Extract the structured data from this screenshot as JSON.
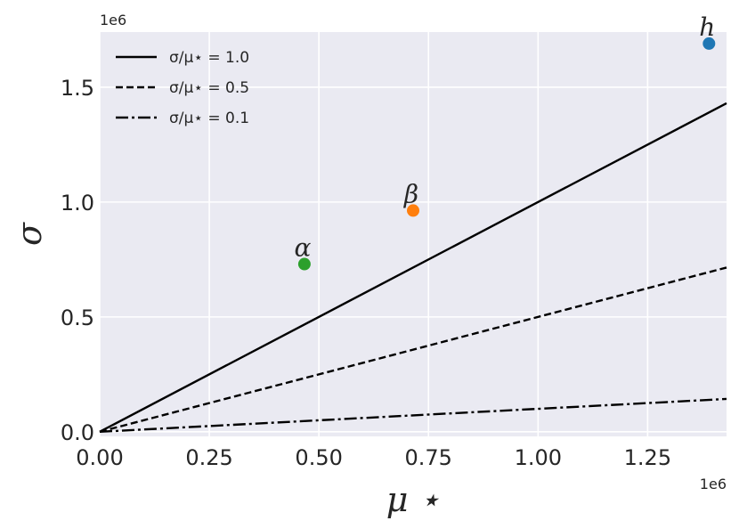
{
  "chart_data": {
    "type": "scatter",
    "xlabel": "μ ⋆",
    "ylabel": "σ",
    "xlim": [
      0,
      1430000
    ],
    "ylim": [
      -20000,
      1740000
    ],
    "x_ticks": [
      0,
      250000,
      500000,
      750000,
      1000000,
      1250000
    ],
    "x_tick_labels": [
      "0.00",
      "0.25",
      "0.50",
      "0.75",
      "1.00",
      "1.25"
    ],
    "y_ticks": [
      0,
      500000,
      1000000,
      1500000
    ],
    "y_tick_labels": [
      "0.0",
      "0.5",
      "1.0",
      "1.5"
    ],
    "x_offset_label": "1e6",
    "y_offset_label": "1e6",
    "grid": true,
    "background": "#eaeaf2",
    "legend_position": "top-left",
    "lines": [
      {
        "name": "σ/μ⋆ = 1.0",
        "ratio": 1.0,
        "style": "solid",
        "color": "#000000"
      },
      {
        "name": "σ/μ⋆ = 0.5",
        "ratio": 0.5,
        "style": "dashed",
        "color": "#000000"
      },
      {
        "name": "σ/μ⋆ = 0.1",
        "ratio": 0.1,
        "style": "dashdot",
        "color": "#000000"
      }
    ],
    "points": [
      {
        "label": "h",
        "x": 1390000,
        "y": 1690000,
        "color": "#1f77b4"
      },
      {
        "label": "β",
        "x": 715000,
        "y": 963000,
        "color": "#ff7f0e"
      },
      {
        "label": "α",
        "x": 467000,
        "y": 730000,
        "color": "#2ca02c"
      }
    ]
  }
}
